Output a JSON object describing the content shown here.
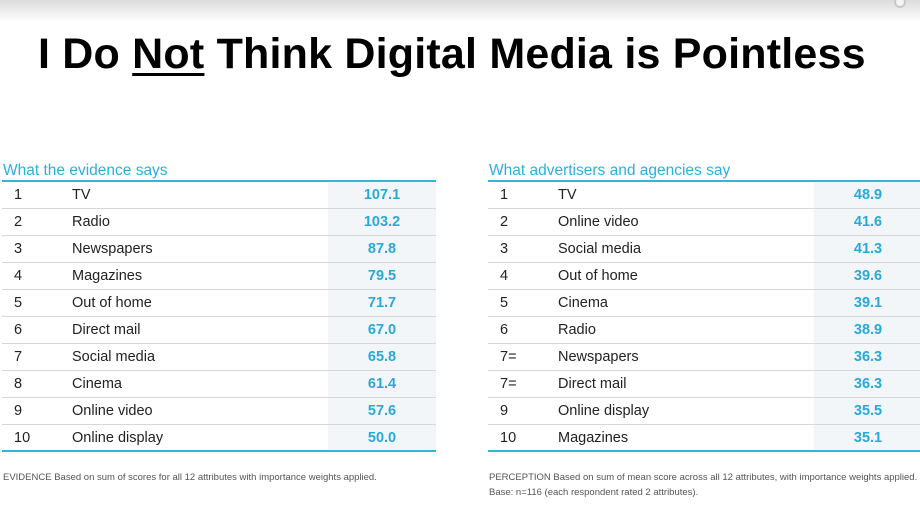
{
  "title": {
    "part1": "I Do ",
    "emphasis": "Not",
    "part2": " Think Digital Media is Pointless"
  },
  "left_panel": {
    "heading": "What the evidence says",
    "rows": [
      {
        "rank": "1",
        "name": "TV",
        "value": "107.1"
      },
      {
        "rank": "2",
        "name": "Radio",
        "value": "103.2"
      },
      {
        "rank": "3",
        "name": "Newspapers",
        "value": "87.8"
      },
      {
        "rank": "4",
        "name": "Magazines",
        "value": "79.5"
      },
      {
        "rank": "5",
        "name": "Out of home",
        "value": "71.7"
      },
      {
        "rank": "6",
        "name": "Direct mail",
        "value": "67.0"
      },
      {
        "rank": "7",
        "name": "Social media",
        "value": "65.8"
      },
      {
        "rank": "8",
        "name": "Cinema",
        "value": "61.4"
      },
      {
        "rank": "9",
        "name": "Online video",
        "value": "57.6"
      },
      {
        "rank": "10",
        "name": "Online display",
        "value": "50.0"
      }
    ],
    "footnote_label": "EVIDENCE",
    "footnote_text": " Based on sum of scores for all 12 attributes with importance weights applied."
  },
  "right_panel": {
    "heading": "What advertisers and agencies say",
    "rows": [
      {
        "rank": "1",
        "name": "TV",
        "value": "48.9"
      },
      {
        "rank": "2",
        "name": "Online video",
        "value": "41.6"
      },
      {
        "rank": "3",
        "name": "Social media",
        "value": "41.3"
      },
      {
        "rank": "4",
        "name": "Out of home",
        "value": "39.6"
      },
      {
        "rank": "5",
        "name": "Cinema",
        "value": "39.1"
      },
      {
        "rank": "6",
        "name": "Radio",
        "value": "38.9"
      },
      {
        "rank": "7=",
        "name": "Newspapers",
        "value": "36.3"
      },
      {
        "rank": "7=",
        "name": "Direct mail",
        "value": "36.3"
      },
      {
        "rank": "9",
        "name": "Online display",
        "value": "35.5"
      },
      {
        "rank": "10",
        "name": "Magazines",
        "value": "35.1"
      }
    ],
    "footnote_label": "PERCEPTION",
    "footnote_text": " Based on sum of mean score across all 12 attributes, with importance weights applied.  Base: n=116 (each respondent rated 2 attributes)."
  },
  "colors": {
    "accent": "#2bb0dc",
    "value_bg": "#f2f6f8",
    "text": "#222222"
  }
}
